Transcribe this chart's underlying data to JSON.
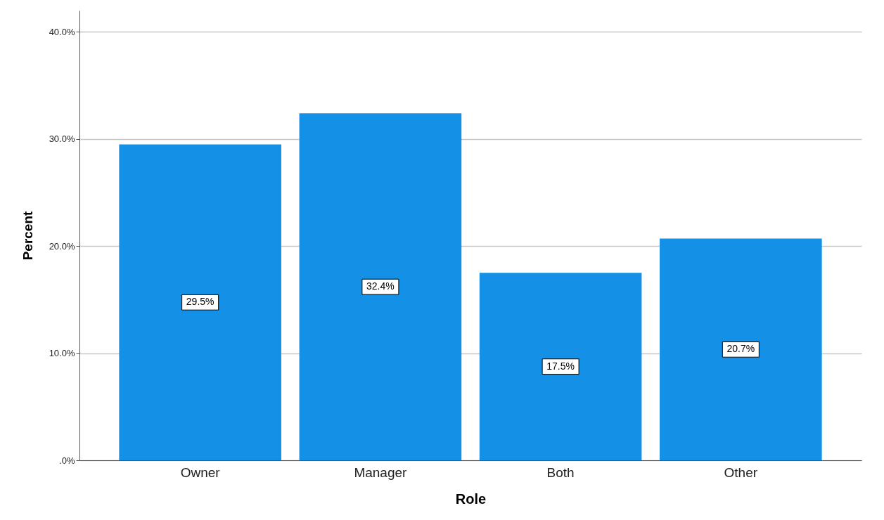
{
  "chart_data": {
    "type": "bar",
    "xlabel": "Role",
    "ylabel": "Percent",
    "categories": [
      "Owner",
      "Manager",
      "Both",
      "Other"
    ],
    "values": [
      29.5,
      32.4,
      17.5,
      20.7
    ],
    "value_labels": [
      "29.5%",
      "32.4%",
      "17.5%",
      "20.7%"
    ],
    "color": "#1490e6",
    "ylim": [
      0,
      42
    ],
    "yticks": [
      {
        "value": 0,
        "label": ".0%"
      },
      {
        "value": 10,
        "label": "10.0%"
      },
      {
        "value": 20,
        "label": "20.0%"
      },
      {
        "value": 30,
        "label": "30.0%"
      },
      {
        "value": 40,
        "label": "40.0%"
      }
    ],
    "grid": "y"
  }
}
